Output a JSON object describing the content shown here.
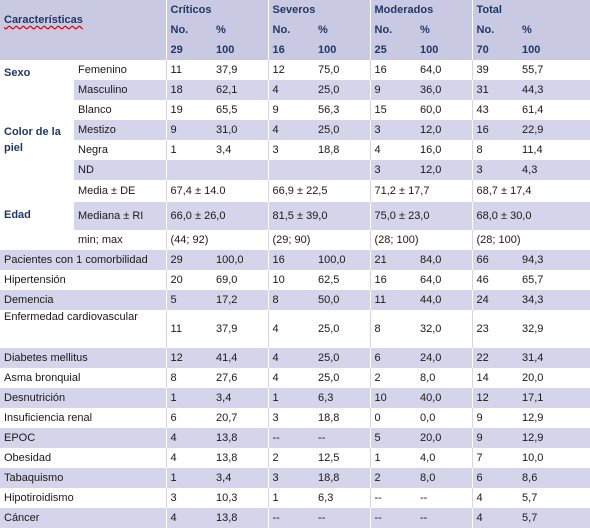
{
  "header": {
    "caracteristicas": "Características",
    "groups": [
      "Críticos",
      "Severos",
      "Moderados",
      "Total"
    ],
    "no_label": "No.",
    "pct_label": "%",
    "totals": [
      {
        "n": "29",
        "p": "100"
      },
      {
        "n": "16",
        "p": "100"
      },
      {
        "n": "25",
        "p": "100"
      },
      {
        "n": "70",
        "p": "100"
      }
    ]
  },
  "groups": {
    "sexo": "Sexo",
    "color_piel_1": "Color de la",
    "color_piel_2": "piel",
    "edad": "Edad"
  },
  "rows": [
    {
      "label": "Femenino",
      "v": [
        "11",
        "37,9",
        "12",
        "75,0",
        "16",
        "64,0",
        "39",
        "55,7"
      ]
    },
    {
      "label": "Masculino",
      "v": [
        "18",
        "62,1",
        "4",
        "25,0",
        "9",
        "36,0",
        "31",
        "44,3"
      ]
    },
    {
      "label": "Blanco",
      "v": [
        "19",
        "65,5",
        "9",
        "56,3",
        "15",
        "60,0",
        "43",
        "61,4"
      ]
    },
    {
      "label": "Mestizo",
      "v": [
        "9",
        "31,0",
        "4",
        "25,0",
        "3",
        "12,0",
        "16",
        "22,9"
      ]
    },
    {
      "label": "Negra",
      "v": [
        "1",
        "3,4",
        "3",
        "18,8",
        "4",
        "16,0",
        "8",
        "11,4"
      ]
    },
    {
      "label": "ND",
      "v": [
        "",
        "",
        "",
        "",
        "3",
        "12,0",
        "3",
        "4,3"
      ]
    },
    {
      "label": "Media  ± DE",
      "v": [
        "67,4 ± 14.0",
        "66,9 ± 22,5",
        "71,2 ± 17,7",
        "68,7 ± 17,4"
      ]
    },
    {
      "label": "Mediana ± RI",
      "v": [
        "66,0 ± 26,0",
        "81,5 ± 39,0",
        "75,0 ± 23,0",
        "68,0 ± 30,0"
      ]
    },
    {
      "label": "min; max",
      "v": [
        "(44; 92)",
        "(29; 90)",
        "(28; 100)",
        "(28; 100)"
      ]
    },
    {
      "label": "Pacientes con 1 comorbilidad",
      "v": [
        "29",
        "100,0",
        "16",
        "100,0",
        "21",
        "84,0",
        "66",
        "94,3"
      ]
    },
    {
      "label": "Hipertensión",
      "v": [
        "20",
        "69,0",
        "10",
        "62,5",
        "16",
        "64,0",
        "46",
        "65,7"
      ]
    },
    {
      "label": "Demencia",
      "v": [
        "5",
        "17,2",
        "8",
        "50,0",
        "11",
        "44,0",
        "24",
        "34,3"
      ]
    },
    {
      "label": "Enfermedad cardiovascular",
      "v": [
        "11",
        "37,9",
        "4",
        "25,0",
        "8",
        "32,0",
        "23",
        "32,9"
      ]
    },
    {
      "label": "Diabetes mellitus",
      "v": [
        "12",
        "41,4",
        "4",
        "25,0",
        "6",
        "24,0",
        "22",
        "31,4"
      ]
    },
    {
      "label": "Asma bronquial",
      "v": [
        "8",
        "27,6",
        "4",
        "25,0",
        "2",
        "8,0",
        "14",
        "20,0"
      ]
    },
    {
      "label": "Desnutrición",
      "v": [
        "1",
        "3,4",
        "1",
        "6,3",
        "10",
        "40,0",
        "12",
        "17,1"
      ]
    },
    {
      "label": "Insuficiencia renal",
      "v": [
        "6",
        "20,7",
        "3",
        "18,8",
        "0",
        "0,0",
        "9",
        "12,9"
      ]
    },
    {
      "label": "EPOC",
      "v": [
        "4",
        "13,8",
        "--",
        "--",
        "5",
        "20,0",
        "9",
        "12,9"
      ]
    },
    {
      "label": "Obesidad",
      "v": [
        "4",
        "13,8",
        "2",
        "12,5",
        "1",
        "4,0",
        "7",
        "10,0"
      ]
    },
    {
      "label": "Tabaquismo",
      "v": [
        "1",
        "3,4",
        "3",
        "18,8",
        "2",
        "8,0",
        "6",
        "8,6"
      ]
    },
    {
      "label": "Hipotiroidismo",
      "v": [
        "3",
        "10,3",
        "1",
        "6,3",
        "--",
        "--",
        "4",
        "5,7"
      ]
    },
    {
      "label": "Cáncer",
      "v": [
        "4",
        "13,8",
        "--",
        "--",
        "--",
        "--",
        "4",
        "5,7"
      ]
    }
  ]
}
